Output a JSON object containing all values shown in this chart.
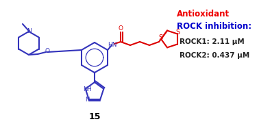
{
  "background_color": "#ffffff",
  "compound_number": "15",
  "antioxidant_label": "Antioxidant",
  "antioxidant_color": "#ee0000",
  "rock_inhibition_label": "ROCK inhibition:",
  "rock_inhibition_color": "#0000cc",
  "rock1_label": "ROCK1: 2.11 μM",
  "rock2_label": "ROCK2: 0.437 μM",
  "data_color": "#222222",
  "blue_color": "#3333bb",
  "red_color": "#dd0000"
}
